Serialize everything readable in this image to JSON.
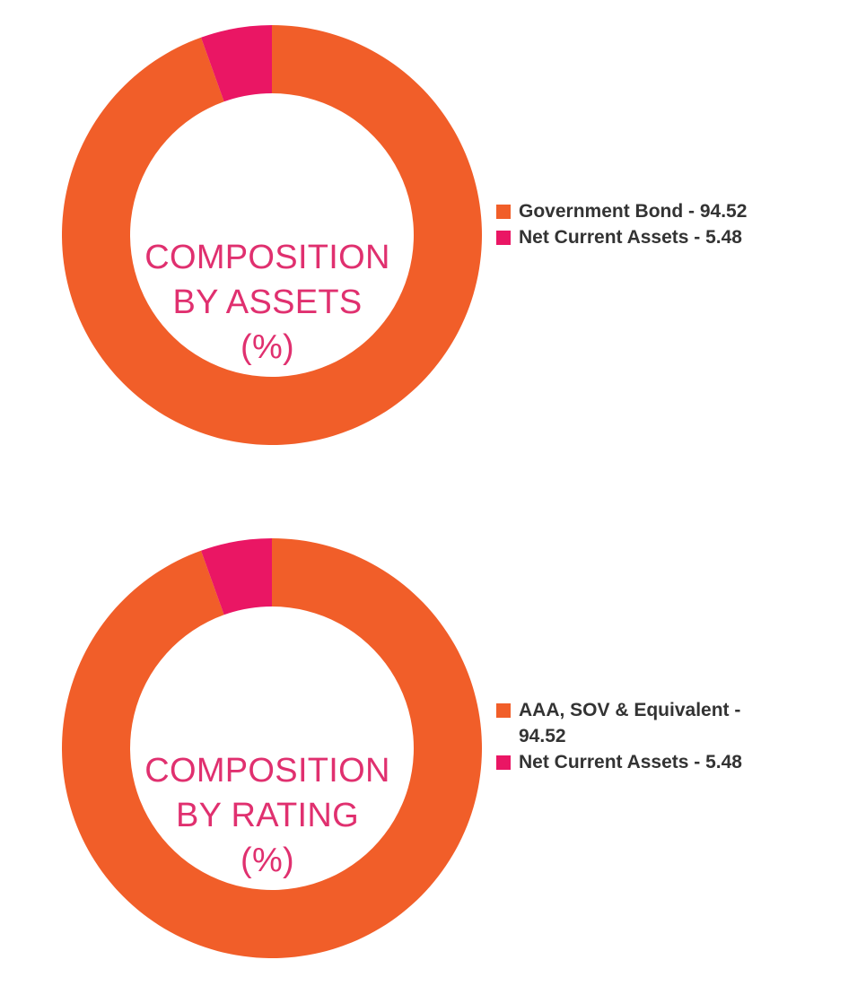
{
  "colors": {
    "orange": "#f15e29",
    "pink": "#ea1664",
    "title": "#e0306f",
    "text": "#333333"
  },
  "chart_data": [
    {
      "type": "pie",
      "variant": "donut",
      "title_lines": [
        "COMPOSITION",
        "BY ASSETS",
        "(%)"
      ],
      "legend_placement": "right",
      "slices": [
        {
          "label": "Government Bond - 94.52",
          "value": 94.52,
          "color": "#f15e29"
        },
        {
          "label": "Net Current Assets - 5.48",
          "value": 5.48,
          "color": "#ea1664"
        }
      ]
    },
    {
      "type": "pie",
      "variant": "donut",
      "title_lines": [
        "COMPOSITION",
        "BY RATING",
        "(%)"
      ],
      "legend_placement": "right",
      "slices": [
        {
          "label": "AAA, SOV & Equivalent - 94.52",
          "value": 94.52,
          "color": "#f15e29"
        },
        {
          "label": "Net Current Assets - 5.48",
          "value": 5.48,
          "color": "#ea1664"
        }
      ]
    }
  ]
}
